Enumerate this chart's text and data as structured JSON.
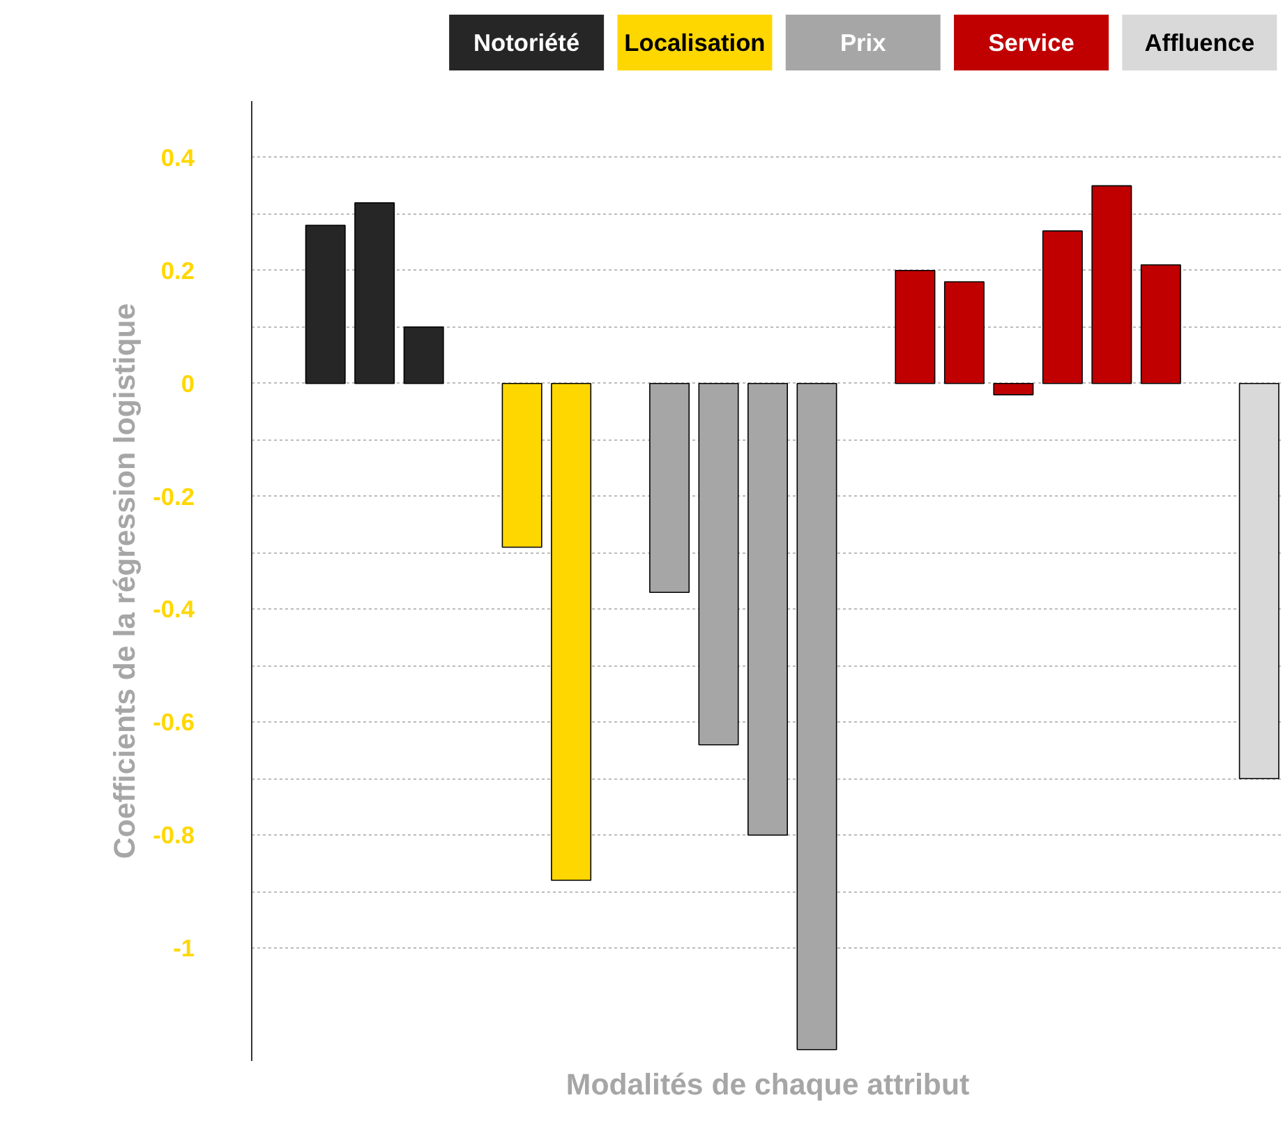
{
  "chart_data": {
    "type": "bar",
    "xlabel": "Modalités de chaque attribut",
    "ylabel": "Coefficients de la régression logistique",
    "categories": [
      null,
      null,
      null,
      null,
      null,
      null,
      null,
      null,
      null,
      null,
      null,
      null,
      null,
      null,
      null,
      null,
      null,
      null,
      null,
      null,
      null
    ],
    "series": [
      {
        "name": "Notoriété",
        "color": "#262626",
        "values": [
          null,
          0.28,
          0.32,
          0.1,
          null,
          null,
          null,
          null,
          null,
          null,
          null,
          null,
          null,
          null,
          null,
          null,
          null,
          null,
          null,
          null,
          null
        ]
      },
      {
        "name": "Localisation",
        "color": "#ffd700",
        "values": [
          null,
          null,
          null,
          null,
          null,
          -0.29,
          -0.88,
          null,
          null,
          null,
          null,
          null,
          null,
          null,
          null,
          null,
          null,
          null,
          null,
          null,
          null
        ]
      },
      {
        "name": "Prix",
        "color": "#a6a6a6",
        "values": [
          null,
          null,
          null,
          null,
          null,
          null,
          null,
          null,
          -0.37,
          -0.64,
          -0.8,
          -1.18,
          null,
          null,
          null,
          null,
          null,
          null,
          null,
          null,
          null
        ]
      },
      {
        "name": "Service",
        "color": "#c00000",
        "values": [
          null,
          null,
          null,
          null,
          null,
          null,
          null,
          null,
          null,
          null,
          null,
          null,
          null,
          0.2,
          0.18,
          -0.02,
          0.27,
          0.35,
          0.21,
          null,
          null
        ]
      },
      {
        "name": "Affluence",
        "color": "#d9d9d9",
        "values": [
          null,
          null,
          null,
          null,
          null,
          null,
          null,
          null,
          null,
          null,
          null,
          null,
          null,
          null,
          null,
          null,
          null,
          null,
          null,
          null,
          -0.7
        ]
      }
    ],
    "ylim": [
      -1.2,
      0.5
    ],
    "yticks": [
      0.4,
      {
        "value": 0.3,
        "label": null
      },
      0.2,
      {
        "value": 0.1,
        "label": null
      },
      0,
      {
        "value": -0.1,
        "label": null
      },
      -0.2,
      {
        "value": -0.3,
        "label": null
      },
      -0.4,
      {
        "value": -0.5,
        "label": null
      },
      -0.6,
      {
        "value": -0.7,
        "label": null
      },
      -0.8,
      {
        "value": -0.9,
        "label": null
      },
      -1
    ],
    "grid": "y",
    "legend": "top",
    "tick_labels": "y"
  }
}
